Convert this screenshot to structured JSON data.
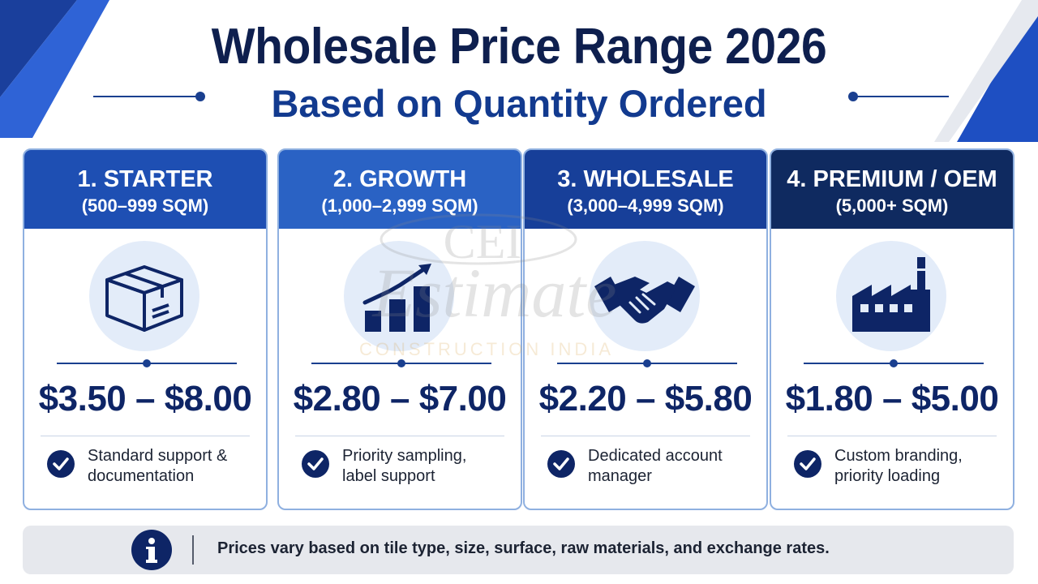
{
  "header": {
    "title": "Wholesale Price Range 2026",
    "subtitle": "Based on Quantity Ordered"
  },
  "tiers": [
    {
      "name": "1. STARTER",
      "range": "(500–999 SQM)",
      "price": "$3.50 – $8.00",
      "feature_line1": "Standard support &",
      "feature_line2": "documentation",
      "icon": "box-icon",
      "header_color": "#1e4fb3"
    },
    {
      "name": "2. GROWTH",
      "range": "(1,000–2,999 SQM)",
      "price": "$2.80 – $7.00",
      "feature_line1": "Priority sampling,",
      "feature_line2": "label support",
      "icon": "growth-chart-icon",
      "header_color": "#2a62c4"
    },
    {
      "name": "3. WHOLESALE",
      "range": "(3,000–4,999 SQM)",
      "price": "$2.20 – $5.80",
      "feature_line1": "Dedicated account",
      "feature_line2": "manager",
      "icon": "handshake-icon",
      "header_color": "#173f99"
    },
    {
      "name": "4. PREMIUM / OEM",
      "range": "(5,000+ SQM)",
      "price": "$1.80 – $5.00",
      "feature_line1": "Custom branding,",
      "feature_line2": "priority loading",
      "icon": "factory-icon",
      "header_color": "#0f2a60"
    }
  ],
  "footer": {
    "note": "Prices vary based on tile type, size, surface, raw materials, and exchange rates.",
    "icon": "info-icon"
  },
  "watermark": {
    "logo_text": "CEI",
    "brand_text": "Estimate",
    "tagline": "CONSTRUCTION INDIA"
  },
  "colors": {
    "navy": "#0e2566",
    "accent_blue": "#1e4fb3",
    "icon_bg": "#e3ecf9"
  }
}
